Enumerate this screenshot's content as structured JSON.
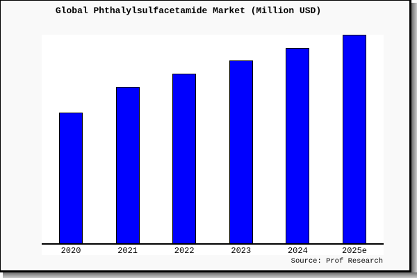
{
  "window": {
    "title": "Global Phthalylsulfacetamide Market (Million USD)"
  },
  "chart_data": {
    "type": "bar",
    "title": "Global Phthalylsulfacetamide Market (Million USD)",
    "categories": [
      "2020",
      "2021",
      "2022",
      "2023",
      "2024",
      "2025e"
    ],
    "values": [
      62.8,
      75.1,
      81.4,
      87.7,
      93.7,
      100
    ],
    "note": "No y-axis or value labels shown; values estimated as bar heights in percent of the tallest (2025e) bar",
    "xlabel": "",
    "ylabel": "",
    "ylim": [
      0,
      100
    ],
    "grid": false,
    "legend": false,
    "y_axis_visible": false,
    "bar_color": "#0000fe",
    "bar_border_color": "#000000",
    "source_note": "Source: Prof Research"
  },
  "colors": {
    "window_background": "#f9f9f9",
    "plot_background": "#ffffff",
    "frame_border": "#000000",
    "shadow": "#6f6f6f",
    "text": "#000000"
  }
}
